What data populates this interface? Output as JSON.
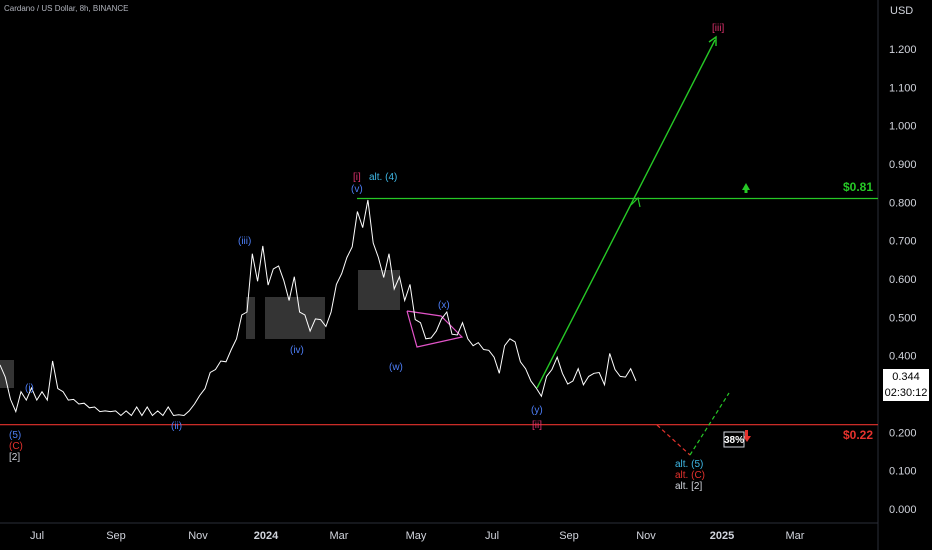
{
  "header": {
    "symbol_title": "Cardano / US Dollar, 8h, BINANCE"
  },
  "price_axis": {
    "currency": "USD",
    "last_price": "0.344",
    "countdown": "02:30:12"
  },
  "colors": {
    "background": "#000000",
    "price_line": "#ffffff",
    "target_line": "#26c826",
    "support_line": "#e5322d",
    "wave_blue": "#4d7ef7",
    "wave_red": "#e0326e",
    "wave_cyan": "#3fb8e6",
    "triangle": "#e254c8",
    "text": "#d1d4dc"
  },
  "chart_data": {
    "type": "line",
    "title": "Cardano / US Dollar, 8h, BINANCE",
    "xlabel": "",
    "ylabel": "USD",
    "ylim": [
      0.0,
      1.3
    ],
    "x_ticks": [
      "Jul",
      "Sep",
      "Nov",
      "2024",
      "Mar",
      "May",
      "Jul",
      "Sep",
      "Nov",
      "2025",
      "Mar"
    ],
    "y_ticks": [
      "1.200",
      "1.100",
      "1.000",
      "0.900",
      "0.800",
      "0.700",
      "0.600",
      "0.500",
      "0.400",
      "0.300",
      "0.200",
      "0.100",
      "0.000"
    ],
    "series": [
      {
        "values": [
          0.37,
          0.35,
          0.28,
          0.26,
          0.3,
          0.29,
          0.31,
          0.29,
          0.3,
          0.29,
          0.38,
          0.32,
          0.3,
          0.29,
          0.28,
          0.28,
          0.27,
          0.27,
          0.26,
          0.26,
          0.25,
          0.26,
          0.25,
          0.25,
          0.25,
          0.25,
          0.26,
          0.25,
          0.26,
          0.25,
          0.25,
          0.25,
          0.26,
          0.25,
          0.24,
          0.25,
          0.25,
          0.28,
          0.29,
          0.32,
          0.35,
          0.37,
          0.38,
          0.39,
          0.41,
          0.45,
          0.5,
          0.52,
          0.66,
          0.6,
          0.68,
          0.59,
          0.62,
          0.64,
          0.59,
          0.55,
          0.6,
          0.52,
          0.5,
          0.47,
          0.49,
          0.5,
          0.47,
          0.52,
          0.58,
          0.62,
          0.65,
          0.69,
          0.77,
          0.74,
          0.8,
          0.7,
          0.65,
          0.61,
          0.66,
          0.58,
          0.6,
          0.55,
          0.58,
          0.5,
          0.48,
          0.45,
          0.44,
          0.47,
          0.49,
          0.52,
          0.45,
          0.46,
          0.48,
          0.45,
          0.42,
          0.44,
          0.41,
          0.42,
          0.39,
          0.36,
          0.42,
          0.45,
          0.43,
          0.39,
          0.36,
          0.34,
          0.31,
          0.3,
          0.34,
          0.37,
          0.39,
          0.36,
          0.32,
          0.34,
          0.36,
          0.33,
          0.34,
          0.36,
          0.35,
          0.33,
          0.4,
          0.37,
          0.34,
          0.35,
          0.36,
          0.34
        ]
      }
    ],
    "levels": [
      {
        "label": "$0.81",
        "value": 0.81
      },
      {
        "label": "$0.22",
        "value": 0.22
      }
    ],
    "annotations": [
      "(i)",
      "(ii)",
      "(iii)",
      "(iv)",
      "(v)",
      "[i]",
      "alt. (4)",
      "(w)",
      "(x)",
      "(y)",
      "[ii]",
      "[iii]",
      "(5)",
      "(C)",
      "[2]",
      "alt. (5)",
      "alt. (C)",
      "alt. [2]",
      "38%"
    ]
  }
}
